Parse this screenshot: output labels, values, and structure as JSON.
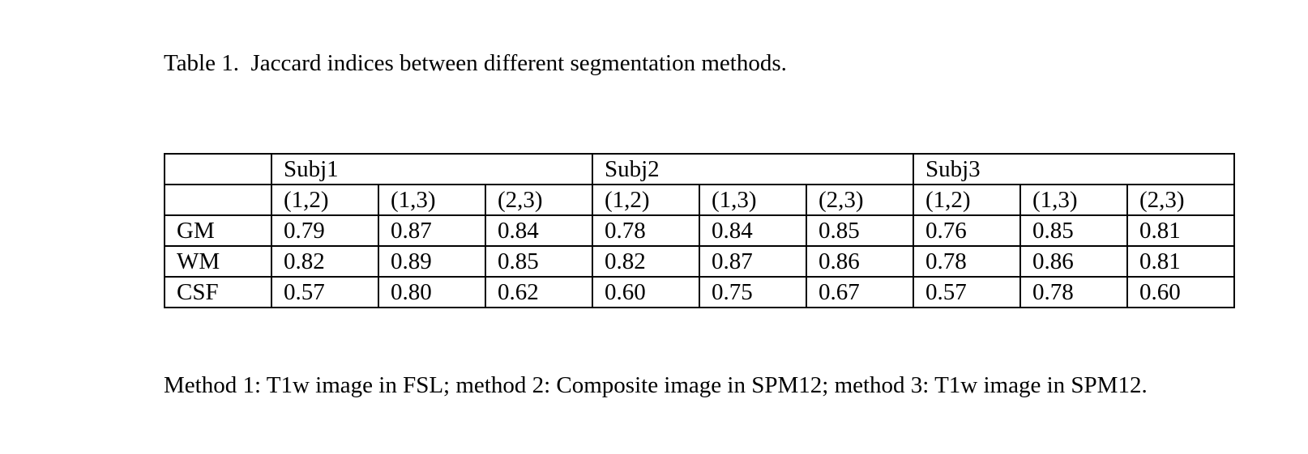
{
  "title": "Table 1.  Jaccard indices between different segmentation methods.",
  "table": {
    "groups": [
      "Subj1",
      "Subj2",
      "Subj3"
    ],
    "pairs": [
      "(1,2)",
      "(1,3)",
      "(2,3)",
      "(1,2)",
      "(1,3)",
      "(2,3)",
      "(1,2)",
      "(1,3)",
      "(2,3)"
    ],
    "rows": [
      {
        "label": "GM",
        "values": [
          "0.79",
          "0.87",
          "0.84",
          "0.78",
          "0.84",
          "0.85",
          "0.76",
          "0.85",
          "0.81"
        ]
      },
      {
        "label": "WM",
        "values": [
          "0.82",
          "0.89",
          "0.85",
          "0.82",
          "0.87",
          "0.86",
          "0.78",
          "0.86",
          "0.81"
        ]
      },
      {
        "label": "CSF",
        "values": [
          "0.57",
          "0.80",
          "0.62",
          "0.60",
          "0.75",
          "0.67",
          "0.57",
          "0.78",
          "0.60"
        ]
      }
    ]
  },
  "footnote": "Method 1: T1w image in FSL; method 2: Composite image in SPM12; method 3: T1w image in SPM12."
}
